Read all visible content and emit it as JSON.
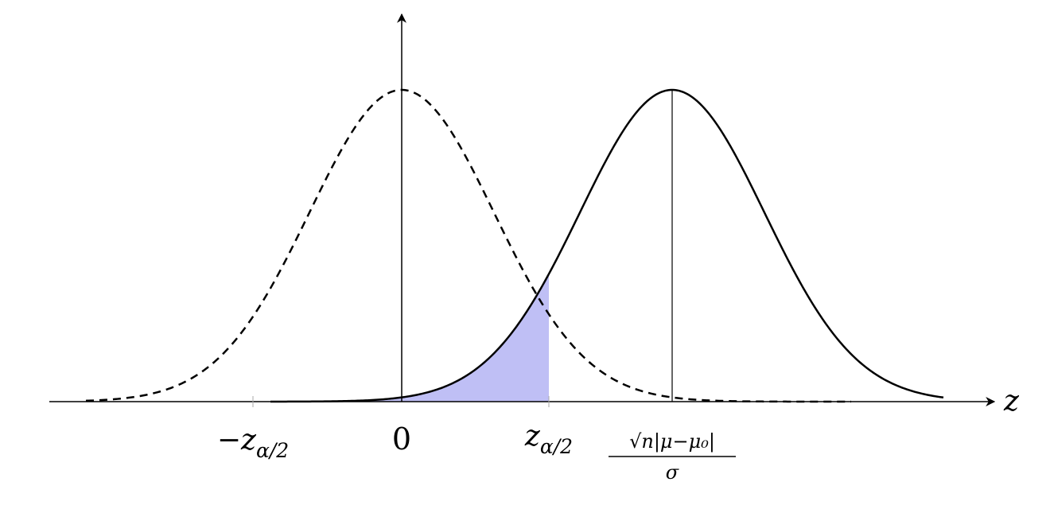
{
  "axis": {
    "label": "z"
  },
  "labels": {
    "neg_crit": {
      "base": "−z",
      "sub": "α/2"
    },
    "zero": "0",
    "crit": {
      "base": "z",
      "sub": "α/2"
    },
    "shift": {
      "numerator": "√n|μ−μ₀|",
      "denominator": "σ"
    }
  }
}
